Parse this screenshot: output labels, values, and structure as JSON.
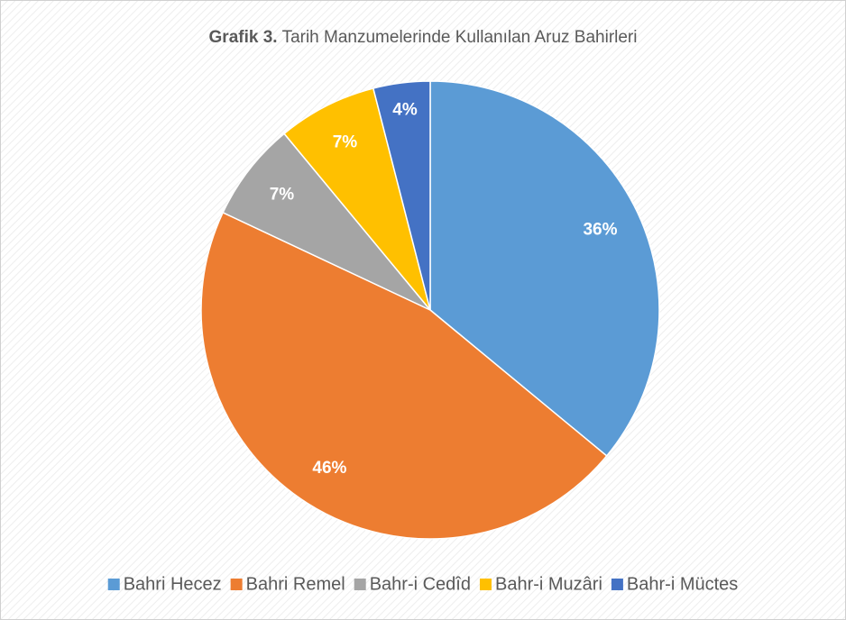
{
  "chart_data": {
    "type": "pie",
    "title_bold": "Grafik 3.",
    "title": "Tarih Manzumelerinde Kullanılan Aruz Bahirleri",
    "categories": [
      "Bahri Hecez",
      "Bahri Remel",
      "Bahr-i Cedîd",
      "Bahr-i Muzâri",
      "Bahr-i Müctes"
    ],
    "values": [
      36,
      46,
      7,
      7,
      4
    ],
    "value_labels": [
      "36%",
      "46%",
      "7%",
      "7%",
      "4%"
    ],
    "colors": [
      "#5b9bd5",
      "#ed7d31",
      "#a5a5a5",
      "#ffc000",
      "#4472c4"
    ],
    "legend": "bottom"
  }
}
